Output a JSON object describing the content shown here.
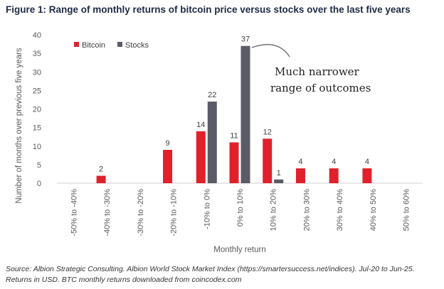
{
  "figure": {
    "title": "Figure 1: Range of monthly returns of bitcoin price versus stocks over the last five years",
    "source": "Source: Albion Strategic Consulting. Albion World Stock Market Index (https://smartersuccess.net/indices). Jul-20 to Jun-25. Returns in USD. BTC monthly returns downloaded from coincodex.com"
  },
  "chart_data": {
    "type": "bar",
    "title": "Figure 1: Range of monthly returns of bitcoin price versus stocks over the last five years",
    "xlabel": "Monthly return",
    "ylabel": "Number of months over previous five years",
    "ylim": [
      0,
      40
    ],
    "yticks": [
      0,
      5,
      10,
      15,
      20,
      25,
      30,
      35,
      40
    ],
    "grid": false,
    "legend": "top-left",
    "categories": [
      "-50% to -40%",
      "-40% to -30%",
      "-30% to -20%",
      "-20% to -10%",
      "-10% to 0%",
      "0% to 10%",
      "10% to 20%",
      "20% to 30%",
      "30% to 40%",
      "40% to 50%",
      "50% to 60%"
    ],
    "series": [
      {
        "name": "Bitcoin",
        "color": "#e0212b",
        "values": [
          0,
          2,
          0,
          9,
          14,
          11,
          12,
          4,
          4,
          4,
          0
        ]
      },
      {
        "name": "Stocks",
        "color": "#5b5b67",
        "values": [
          0,
          0,
          0,
          0,
          22,
          37,
          1,
          0,
          0,
          0,
          0
        ]
      }
    ],
    "annotation": {
      "lines": [
        "Much narrower",
        "range of outcomes"
      ]
    }
  }
}
